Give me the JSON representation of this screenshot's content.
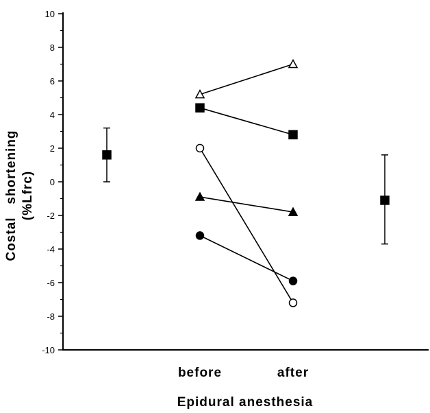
{
  "chart_data": {
    "type": "scatter",
    "title": "",
    "ylabel_line1": "Costal   shortening",
    "ylabel_line2": "(%Lfrc)",
    "xlabel": "Epidural   anesthesia",
    "categories": [
      "before",
      "after"
    ],
    "ylim": [
      -10,
      10
    ],
    "yticks": [
      10,
      8,
      6,
      4,
      2,
      0,
      -2,
      -4,
      -6,
      -8,
      -10
    ],
    "grid": false,
    "series": [
      {
        "marker": "triangle-open",
        "values": [
          5.2,
          7.0
        ]
      },
      {
        "marker": "square-filled",
        "values": [
          4.4,
          2.8
        ]
      },
      {
        "marker": "circle-open",
        "values": [
          2.0,
          -7.2
        ]
      },
      {
        "marker": "triangle-filled",
        "values": [
          -0.9,
          -1.8
        ]
      },
      {
        "marker": "circle-filled",
        "values": [
          -3.2,
          -5.9
        ]
      }
    ],
    "summary": [
      {
        "label": "before",
        "marker": "square-filled",
        "mean": 1.6,
        "upper": 3.2,
        "lower": 0.0
      },
      {
        "label": "after",
        "marker": "square-filled",
        "mean": -1.1,
        "upper": 1.6,
        "lower": -3.7
      }
    ]
  }
}
